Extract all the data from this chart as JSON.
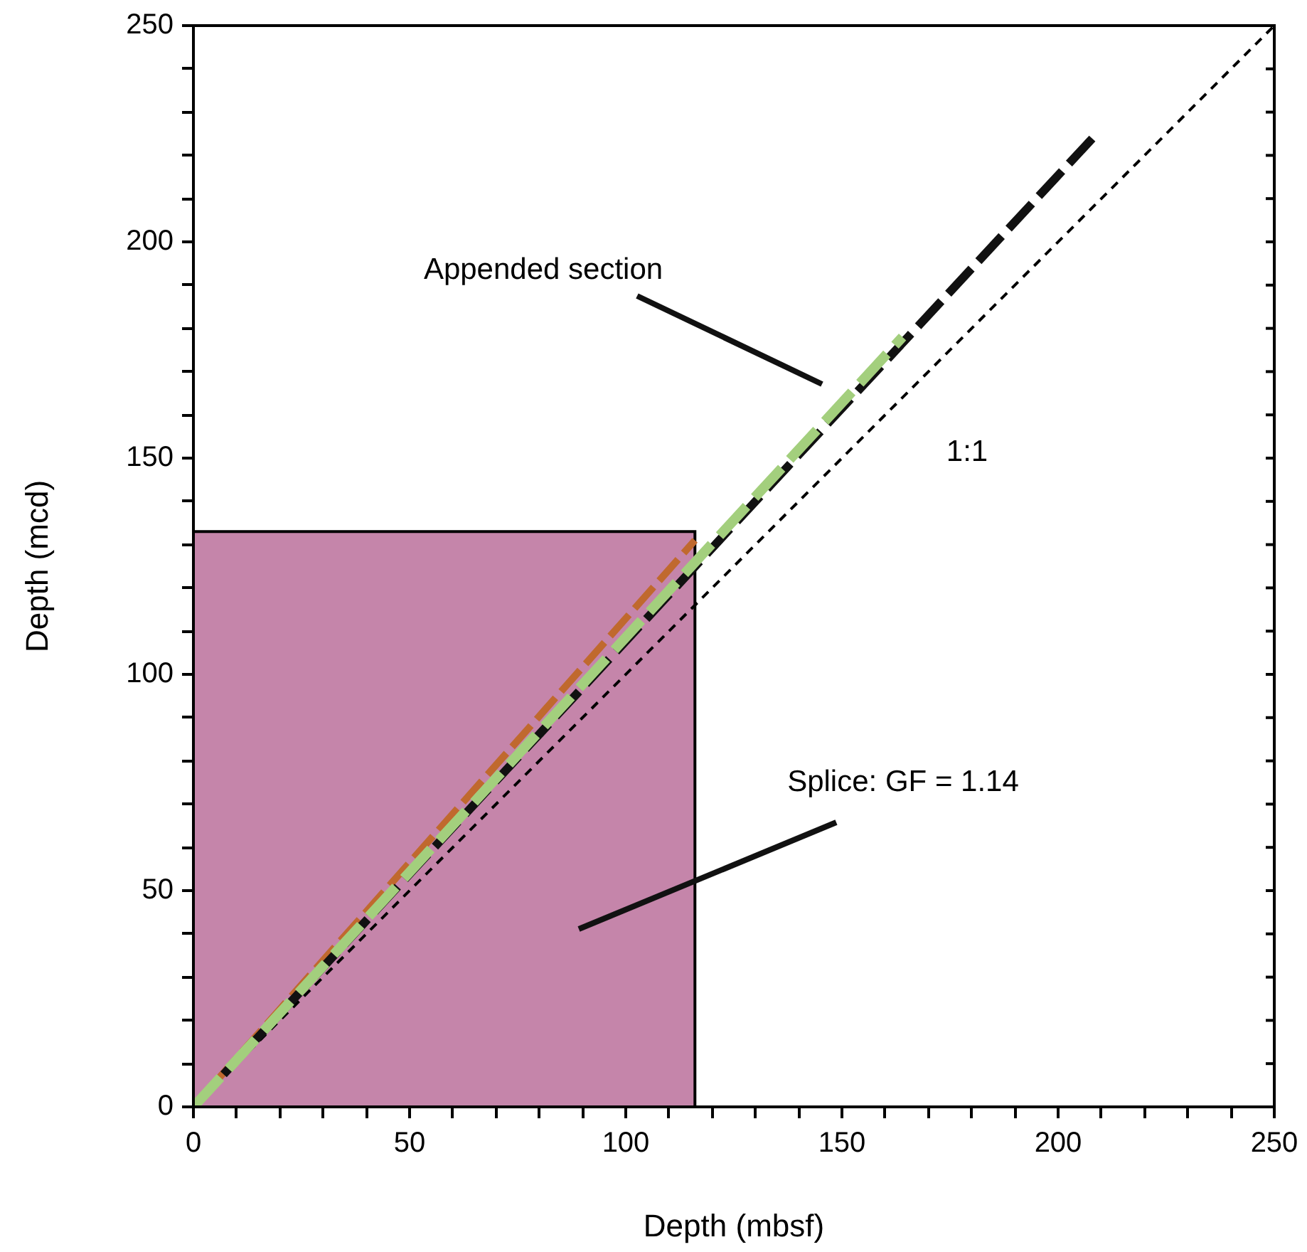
{
  "chart_data": {
    "type": "line",
    "xlabel": "Depth (mbsf)",
    "ylabel": "Depth (mcd)",
    "xlim": [
      0,
      250
    ],
    "ylim": [
      0,
      250
    ],
    "xticks": [
      0,
      {
        "value": 10,
        "label": null
      },
      {
        "value": 20,
        "label": null
      },
      {
        "value": 30,
        "label": null
      },
      {
        "value": 40,
        "label": null
      },
      50,
      {
        "value": 60,
        "label": null
      },
      {
        "value": 70,
        "label": null
      },
      {
        "value": 80,
        "label": null
      },
      {
        "value": 90,
        "label": null
      },
      100,
      {
        "value": 110,
        "label": null
      },
      {
        "value": 120,
        "label": null
      },
      {
        "value": 130,
        "label": null
      },
      {
        "value": 140,
        "label": null
      },
      150,
      {
        "value": 160,
        "label": null
      },
      {
        "value": 170,
        "label": null
      },
      {
        "value": 180,
        "label": null
      },
      {
        "value": 190,
        "label": null
      },
      200,
      {
        "value": 210,
        "label": null
      },
      {
        "value": 220,
        "label": null
      },
      {
        "value": 230,
        "label": null
      },
      {
        "value": 240,
        "label": null
      },
      250
    ],
    "yticks": [
      0,
      {
        "value": 10,
        "label": null
      },
      {
        "value": 20,
        "label": null
      },
      {
        "value": 30,
        "label": null
      },
      {
        "value": 40,
        "label": null
      },
      50,
      {
        "value": 60,
        "label": null
      },
      {
        "value": 70,
        "label": null
      },
      {
        "value": 80,
        "label": null
      },
      {
        "value": 90,
        "label": null
      },
      100,
      {
        "value": 110,
        "label": null
      },
      {
        "value": 120,
        "label": null
      },
      {
        "value": 130,
        "label": null
      },
      {
        "value": 140,
        "label": null
      },
      150,
      {
        "value": 160,
        "label": null
      },
      {
        "value": 170,
        "label": null
      },
      {
        "value": 180,
        "label": null
      },
      {
        "value": 190,
        "label": null
      },
      200,
      {
        "value": 210,
        "label": null
      },
      {
        "value": 220,
        "label": null
      },
      {
        "value": 230,
        "label": null
      },
      {
        "value": 240,
        "label": null
      },
      250
    ],
    "grid": false,
    "legend": false,
    "marker": "none",
    "series": [
      {
        "type": "area",
        "color": "#c585aa",
        "x": [
          0,
          116
        ],
        "values": [
          133,
          133
        ]
      },
      {
        "color": "#000000",
        "line_style": "dotted",
        "x": [
          0,
          250
        ],
        "values": [
          0,
          250
        ]
      },
      {
        "color": "#c0692e",
        "line_style": "dashed",
        "x": [
          0,
          116
        ],
        "values": [
          0,
          131
        ]
      },
      {
        "color": "#111111",
        "line_style": "dashed",
        "x": [
          0,
          208
        ],
        "values": [
          0,
          224
        ]
      },
      {
        "color": "#a3cf7d",
        "line_style": "dashed",
        "x": [
          0,
          164
        ],
        "values": [
          0,
          178
        ]
      }
    ],
    "annotations": [
      "Appended section",
      "1:1",
      "Splice: GF = 1.14"
    ]
  }
}
